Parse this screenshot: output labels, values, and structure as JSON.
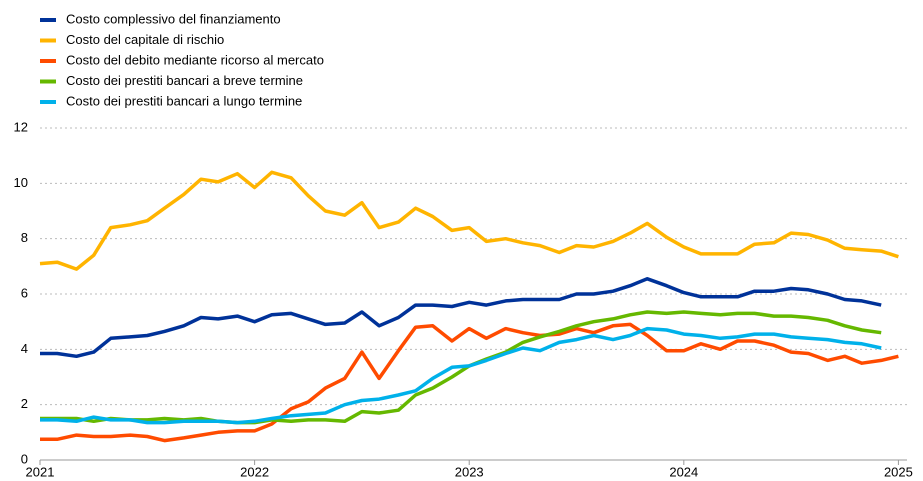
{
  "chart_data": {
    "type": "line",
    "x": [
      2021,
      2021.08,
      2021.17,
      2021.25,
      2021.33,
      2021.42,
      2021.5,
      2021.58,
      2021.67,
      2021.75,
      2021.83,
      2021.92,
      2022,
      2022.08,
      2022.17,
      2022.25,
      2022.33,
      2022.42,
      2022.5,
      2022.58,
      2022.67,
      2022.75,
      2022.83,
      2022.92,
      2023,
      2023.08,
      2023.17,
      2023.25,
      2023.33,
      2023.42,
      2023.5,
      2023.58,
      2023.67,
      2023.75,
      2023.83,
      2023.92,
      2024,
      2024.08,
      2024.17,
      2024.25,
      2024.33,
      2024.42,
      2024.5,
      2024.58,
      2024.67,
      2024.75,
      2024.83,
      2024.92,
      2025
    ],
    "series": [
      {
        "name": "Costo complessivo del finanziamento",
        "color": "#003299",
        "values": [
          3.85,
          3.85,
          3.75,
          3.9,
          4.4,
          4.45,
          4.5,
          4.65,
          4.85,
          5.15,
          5.1,
          5.2,
          5.0,
          5.25,
          5.3,
          5.1,
          4.9,
          4.95,
          5.35,
          4.85,
          5.15,
          5.6,
          5.6,
          5.55,
          5.7,
          5.6,
          5.75,
          5.8,
          5.8,
          5.8,
          6.0,
          6.0,
          6.1,
          6.3,
          6.55,
          6.3,
          6.05,
          5.9,
          5.9,
          5.9,
          6.1,
          6.1,
          6.2,
          6.15,
          6.0,
          5.8,
          5.75,
          5.6,
          null
        ]
      },
      {
        "name": "Costo del capitale di rischio",
        "color": "#ffb400",
        "values": [
          7.1,
          7.15,
          6.9,
          7.4,
          8.4,
          8.5,
          8.65,
          9.1,
          9.6,
          10.15,
          10.05,
          10.35,
          9.85,
          10.4,
          10.2,
          9.55,
          9.0,
          8.85,
          9.3,
          8.4,
          8.6,
          9.1,
          8.8,
          8.3,
          8.4,
          7.9,
          8.0,
          7.85,
          7.75,
          7.5,
          7.75,
          7.7,
          7.9,
          8.2,
          8.55,
          8.05,
          7.7,
          7.45,
          7.45,
          7.45,
          7.8,
          7.85,
          8.2,
          8.15,
          7.95,
          7.65,
          7.6,
          7.55,
          7.35
        ]
      },
      {
        "name": "Costo del debito mediante ricorso al mercato",
        "color": "#ff4b00",
        "values": [
          0.75,
          0.75,
          0.9,
          0.85,
          0.85,
          0.9,
          0.85,
          0.7,
          0.8,
          0.9,
          1.0,
          1.05,
          1.05,
          1.3,
          1.85,
          2.1,
          2.6,
          2.95,
          3.9,
          2.95,
          3.95,
          4.8,
          4.85,
          4.3,
          4.75,
          4.4,
          4.75,
          4.6,
          4.5,
          4.55,
          4.75,
          4.6,
          4.85,
          4.9,
          4.5,
          3.95,
          3.95,
          4.2,
          4.0,
          4.3,
          4.3,
          4.15,
          3.9,
          3.85,
          3.6,
          3.75,
          3.5,
          3.6,
          3.75
        ]
      },
      {
        "name": "Costo dei prestiti bancari a breve termine",
        "color": "#65b800",
        "values": [
          1.5,
          1.5,
          1.5,
          1.4,
          1.5,
          1.45,
          1.45,
          1.5,
          1.45,
          1.5,
          1.4,
          1.35,
          1.35,
          1.45,
          1.4,
          1.45,
          1.45,
          1.4,
          1.75,
          1.7,
          1.8,
          2.35,
          2.6,
          3.0,
          3.4,
          3.65,
          3.9,
          4.25,
          4.45,
          4.65,
          4.85,
          5.0,
          5.1,
          5.25,
          5.35,
          5.3,
          5.35,
          5.3,
          5.25,
          5.3,
          5.3,
          5.2,
          5.2,
          5.15,
          5.05,
          4.85,
          4.7,
          4.6,
          null
        ]
      },
      {
        "name": "Costo dei prestiti bancari a lungo termine",
        "color": "#00b1ea",
        "values": [
          1.45,
          1.45,
          1.4,
          1.55,
          1.45,
          1.45,
          1.35,
          1.35,
          1.4,
          1.4,
          1.4,
          1.35,
          1.4,
          1.5,
          1.6,
          1.65,
          1.7,
          2.0,
          2.15,
          2.2,
          2.35,
          2.5,
          2.95,
          3.35,
          3.4,
          3.6,
          3.85,
          4.05,
          3.95,
          4.25,
          4.35,
          4.5,
          4.35,
          4.5,
          4.75,
          4.7,
          4.55,
          4.5,
          4.4,
          4.45,
          4.55,
          4.55,
          4.45,
          4.4,
          4.35,
          4.25,
          4.2,
          4.05,
          null
        ]
      }
    ],
    "xlim": [
      2021,
      2025.04
    ],
    "xticks": [
      2021,
      2022,
      2023,
      2024,
      2025
    ],
    "ylim": [
      0,
      12
    ],
    "yticks": [
      0,
      2,
      4,
      6,
      8,
      10,
      12
    ],
    "grid": true,
    "legend": "top-left"
  }
}
